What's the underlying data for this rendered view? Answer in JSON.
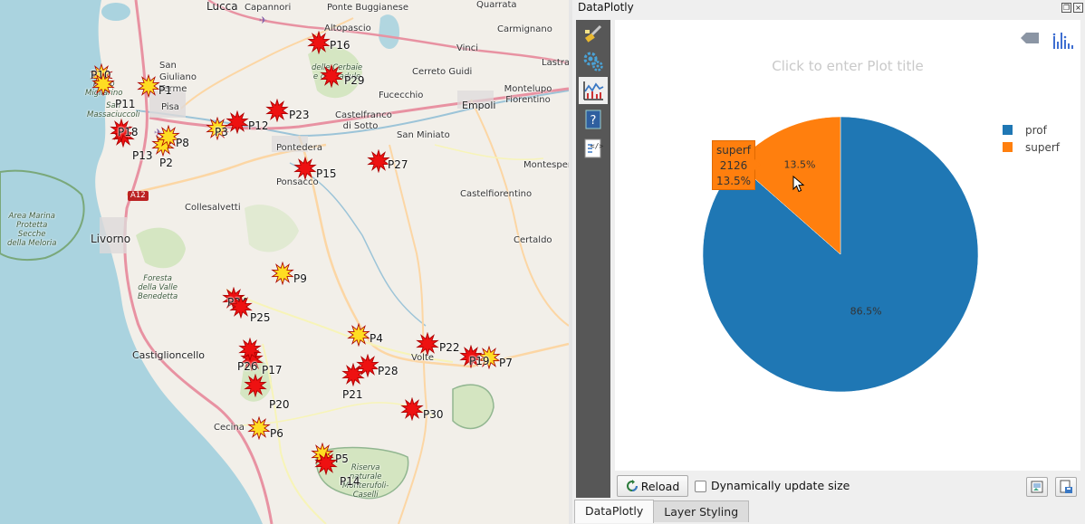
{
  "map": {
    "places": [
      {
        "id": "lucca",
        "text": "Lucca",
        "cls": "city"
      },
      {
        "id": "capannori",
        "text": "Capannori",
        "cls": ""
      },
      {
        "id": "altopascio",
        "text": "Altopascio",
        "cls": ""
      },
      {
        "id": "ponte",
        "text": "Ponte Buggianese",
        "cls": ""
      },
      {
        "id": "quarrata",
        "text": "Quarrata",
        "cls": ""
      },
      {
        "id": "carmignano",
        "text": "Carmignano",
        "cls": ""
      },
      {
        "id": "vinci",
        "text": "Vinci",
        "cls": ""
      },
      {
        "id": "lastra",
        "text": "Lastra",
        "cls": ""
      },
      {
        "id": "sangiuliano",
        "text": "San Giuliano Terme",
        "cls": ""
      },
      {
        "id": "cerreto",
        "text": "Cerreto Guidi",
        "cls": ""
      },
      {
        "id": "fucecchio",
        "text": "Fucecchio",
        "cls": ""
      },
      {
        "id": "montelupo",
        "text": "Montelupo Fiorentino",
        "cls": ""
      },
      {
        "id": "empoli",
        "text": "Empoli",
        "cls": "town"
      },
      {
        "id": "castelfranco",
        "text": "Castelfranco di Sotto",
        "cls": ""
      },
      {
        "id": "sanminiato",
        "text": "San Miniato",
        "cls": ""
      },
      {
        "id": "montespertoli",
        "text": "Montespert",
        "cls": ""
      },
      {
        "id": "pontedera",
        "text": "Pontedera",
        "cls": ""
      },
      {
        "id": "ponsacco",
        "text": "Ponsacco",
        "cls": ""
      },
      {
        "id": "collesalvetti",
        "text": "Collesalvetti",
        "cls": ""
      },
      {
        "id": "castelfiorentino",
        "text": "Castelfiorentino",
        "cls": ""
      },
      {
        "id": "certaldo",
        "text": "Certaldo",
        "cls": ""
      },
      {
        "id": "livorno",
        "text": "Livorno",
        "cls": "city"
      },
      {
        "id": "castiglioncello",
        "text": "Castiglioncello",
        "cls": "town"
      },
      {
        "id": "volterra",
        "text": "Volte",
        "cls": ""
      },
      {
        "id": "cecina",
        "text": "Cecina",
        "cls": ""
      },
      {
        "id": "pisa",
        "text": "Pisa",
        "cls": ""
      },
      {
        "id": "sanmass",
        "text": "San\nMassaciuccoli",
        "cls": "small"
      },
      {
        "id": "marina",
        "text": "Area Marina\nProtetta\nSecche\ndella Meloria",
        "cls": "small"
      },
      {
        "id": "foresta",
        "text": "Foresta\ndella Valle\nBenedetta",
        "cls": "small"
      },
      {
        "id": "cerbaie",
        "text": "delle Cerbaie\ne del Padule",
        "cls": "small"
      },
      {
        "id": "riserva",
        "text": "Riserva\nnaturale\nMonterufoli-\nCaselli",
        "cls": "small"
      },
      {
        "id": "parco",
        "text": "Parco\nMigliarino",
        "cls": "small"
      }
    ],
    "road_shield": "A12",
    "points": [
      {
        "label": "P1",
        "kind": "yellow"
      },
      {
        "label": "P2",
        "kind": "yellow"
      },
      {
        "label": "P3",
        "kind": "yellow"
      },
      {
        "label": "P4",
        "kind": "yellow"
      },
      {
        "label": "P5",
        "kind": "yellow"
      },
      {
        "label": "P6",
        "kind": "yellow"
      },
      {
        "label": "P7",
        "kind": "yellow"
      },
      {
        "label": "P8",
        "kind": "yellow"
      },
      {
        "label": "P9",
        "kind": "yellow"
      },
      {
        "label": "P10",
        "kind": "yellow"
      },
      {
        "label": "P11",
        "kind": "yellow"
      },
      {
        "label": "P12",
        "kind": "red"
      },
      {
        "label": "P13",
        "kind": "red"
      },
      {
        "label": "P14",
        "kind": "red"
      },
      {
        "label": "P15",
        "kind": "red"
      },
      {
        "label": "P16",
        "kind": "red"
      },
      {
        "label": "P17",
        "kind": "red"
      },
      {
        "label": "P18",
        "kind": "red"
      },
      {
        "label": "P19",
        "kind": "red"
      },
      {
        "label": "P20",
        "kind": "red"
      },
      {
        "label": "P21",
        "kind": "red"
      },
      {
        "label": "P22",
        "kind": "red"
      },
      {
        "label": "P23",
        "kind": "red"
      },
      {
        "label": "P24",
        "kind": "red"
      },
      {
        "label": "P25",
        "kind": "red"
      },
      {
        "label": "P26",
        "kind": "red"
      },
      {
        "label": "P27",
        "kind": "red"
      },
      {
        "label": "P28",
        "kind": "red"
      },
      {
        "label": "P29",
        "kind": "red"
      },
      {
        "label": "P30",
        "kind": "red"
      }
    ],
    "colors": {
      "red": "#ee1111",
      "yellow": "#ffdd22",
      "land": "#f2efe9",
      "sea": "#aad3df",
      "green": "#cde3b8"
    }
  },
  "dock": {
    "title": "DataPlotly",
    "float_btn": "❐",
    "close_btn": "×",
    "tools": [
      {
        "name": "style-icon"
      },
      {
        "name": "settings-icon"
      },
      {
        "name": "plot-icon"
      },
      {
        "name": "help-icon"
      },
      {
        "name": "code-icon"
      }
    ]
  },
  "plot": {
    "title_placeholder": "Click to enter Plot title",
    "tooltip": {
      "label": "superf",
      "value": "2126",
      "percent": "13.5%"
    }
  },
  "chart_data": {
    "type": "pie",
    "title": "",
    "categories": [
      "prof",
      "superf"
    ],
    "values": [
      86.5,
      13.5
    ],
    "value_labels": [
      "86.5%",
      "13.5%"
    ],
    "colors": [
      "#1f77b4",
      "#ff7f0e"
    ],
    "legend": "right",
    "start_angle_deg": 90,
    "direction": "clockwise"
  },
  "bottom": {
    "reload_label": "Reload",
    "dynamic_label": "Dynamically update size",
    "dynamic_checked": false
  },
  "tabs": [
    {
      "label": "DataPlotly",
      "active": true
    },
    {
      "label": "Layer Styling",
      "active": false
    }
  ]
}
